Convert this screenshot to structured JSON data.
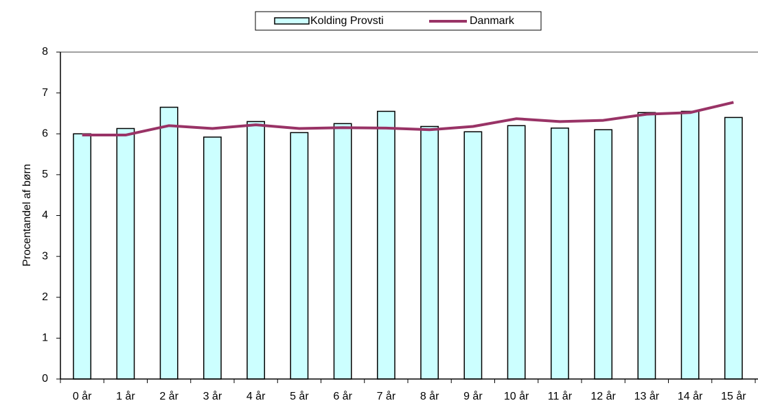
{
  "chart_data": {
    "type": "bar",
    "y_label": "Procentandel af børn",
    "categories": [
      "0 år",
      "1 år",
      "2 år",
      "3 år",
      "4 år",
      "5 år",
      "6 år",
      "7 år",
      "8 år",
      "9 år",
      "10 år",
      "11 år",
      "12 år",
      "13 år",
      "14 år",
      "15 år"
    ],
    "series": [
      {
        "name": "Kolding Provsti",
        "type": "bar",
        "color": "#ccffff",
        "values": [
          6.0,
          6.13,
          6.65,
          5.92,
          6.3,
          6.03,
          6.25,
          6.55,
          6.18,
          6.05,
          6.2,
          6.14,
          6.1,
          6.52,
          6.55,
          6.4
        ]
      },
      {
        "name": "Danmark",
        "type": "line",
        "color": "#993366",
        "values": [
          5.97,
          5.97,
          6.2,
          6.13,
          6.22,
          6.13,
          6.15,
          6.14,
          6.1,
          6.18,
          6.37,
          6.3,
          6.33,
          6.48,
          6.52,
          6.77
        ]
      }
    ],
    "ylim": [
      0,
      8
    ],
    "yticks": [
      0,
      1,
      2,
      3,
      4,
      5,
      6,
      7,
      8
    ],
    "legend": "top"
  }
}
